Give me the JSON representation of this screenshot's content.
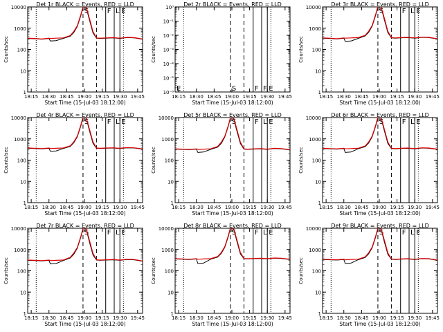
{
  "chart_data": {
    "type": "line",
    "grid": false,
    "legend": "none",
    "xlabel": "Start Time (15-Jul-03 18:12:00)",
    "ylabel": "Counts/sec",
    "x_ticks": [
      "18:15",
      "18:30",
      "18:45",
      "19:00",
      "19:15",
      "19:30",
      "19:45"
    ],
    "x_tick_minutes": [
      18.25,
      18.5,
      18.75,
      19.0,
      19.25,
      19.5,
      19.75
    ],
    "x_range_hours": [
      18.2,
      19.82
    ],
    "y_scale": "log",
    "colors": {
      "events": "#000000",
      "lld": "#e00000"
    },
    "marker_letters": [
      "S",
      "F",
      "F",
      "E"
    ],
    "markers": [
      {
        "x": 18.32,
        "style": "dotted"
      },
      {
        "x": 18.98,
        "style": "dashed"
      },
      {
        "x": 19.17,
        "style": "dashed"
      },
      {
        "x": 19.3,
        "style": "solid"
      },
      {
        "x": 19.42,
        "style": "solid"
      },
      {
        "x": 19.5,
        "style": "solid"
      },
      {
        "x": 19.55,
        "style": "dotted"
      }
    ],
    "time_hours": [
      18.2,
      18.3,
      18.4,
      18.5,
      18.52,
      18.6,
      18.7,
      18.8,
      18.85,
      18.9,
      18.95,
      18.98,
      19.0,
      19.03,
      19.07,
      19.12,
      19.17,
      19.22,
      19.3,
      19.4,
      19.5,
      19.6,
      19.7,
      19.82
    ],
    "panels": [
      {
        "title": "Det 1r BLACK = Events, RED = LLD",
        "y_range": [
          1,
          10000
        ],
        "y_ticks": [
          "1",
          "10",
          "100",
          "1000",
          "10000"
        ],
        "letters_top": [
          "S",
          "F",
          "L",
          "E"
        ],
        "letters_bottom": [],
        "events": [
          330,
          320,
          300,
          330,
          250,
          260,
          330,
          420,
          620,
          1200,
          4000,
          10000,
          12000,
          8000,
          2500,
          600,
          340,
          330,
          340,
          350,
          330,
          360,
          350,
          300
        ],
        "lld": [
          340,
          330,
          310,
          340,
          330,
          340,
          350,
          450,
          700,
          1300,
          4500,
          10000,
          12000,
          9000,
          3000,
          700,
          350,
          340,
          350,
          360,
          340,
          370,
          360,
          310
        ]
      },
      {
        "title": "Det 2r BLACK = Events, RED = LLD",
        "y_range": [
          1,
          1e-06
        ],
        "y_ticks": [
          "10⁻⁶",
          "10⁻⁵",
          "10⁻⁴",
          "10⁻³",
          "10⁻²",
          "10⁻¹",
          "10⁰"
        ],
        "letters_top": [],
        "letters_bottom": [
          "S",
          "F",
          "F",
          "E"
        ],
        "events": [],
        "lld": []
      },
      {
        "title": "Det 3r BLACK = Events, RED = LLD",
        "y_range": [
          1,
          10000
        ],
        "y_ticks": [
          "1",
          "10",
          "100",
          "1000",
          "10000"
        ],
        "letters_top": [
          "S",
          "F",
          "L",
          "E"
        ],
        "letters_bottom": [],
        "events": [
          340,
          330,
          310,
          340,
          240,
          250,
          330,
          430,
          640,
          1250,
          4200,
          10000,
          12500,
          8500,
          2600,
          620,
          350,
          340,
          350,
          360,
          340,
          370,
          360,
          310
        ],
        "lld": [
          350,
          340,
          320,
          350,
          340,
          350,
          360,
          460,
          720,
          1350,
          4700,
          10500,
          12500,
          9200,
          3100,
          720,
          360,
          350,
          360,
          370,
          350,
          380,
          370,
          320
        ]
      },
      {
        "title": "Det 4r BLACK = Events, RED = LLD",
        "y_range": [
          1,
          10000
        ],
        "y_ticks": [
          "1",
          "10",
          "100",
          "1000",
          "10000"
        ],
        "letters_top": [
          "S",
          "F",
          "L",
          "E"
        ],
        "letters_bottom": [],
        "events": [
          360,
          350,
          340,
          360,
          260,
          270,
          350,
          440,
          650,
          1250,
          4100,
          10000,
          12000,
          8200,
          2500,
          620,
          360,
          350,
          360,
          370,
          350,
          380,
          370,
          330
        ],
        "lld": [
          370,
          360,
          350,
          370,
          350,
          360,
          370,
          470,
          720,
          1350,
          4600,
          10500,
          12000,
          9000,
          3000,
          720,
          370,
          360,
          370,
          380,
          360,
          390,
          380,
          340
        ]
      },
      {
        "title": "Det 5r BLACK = Events, RED = LLD",
        "y_range": [
          1,
          10000
        ],
        "y_ticks": [
          "1",
          "10",
          "100",
          "1000",
          "10000"
        ],
        "letters_top": [
          "S",
          "F",
          "L",
          "E"
        ],
        "letters_bottom": [],
        "events": [
          330,
          320,
          310,
          330,
          230,
          240,
          320,
          410,
          610,
          1200,
          4000,
          10000,
          12000,
          8000,
          2400,
          600,
          330,
          320,
          330,
          340,
          320,
          350,
          340,
          300
        ],
        "lld": [
          340,
          330,
          320,
          340,
          320,
          330,
          340,
          440,
          690,
          1300,
          4400,
          10000,
          12000,
          8800,
          2900,
          700,
          340,
          330,
          340,
          350,
          330,
          360,
          350,
          310
        ]
      },
      {
        "title": "Det 6r BLACK = Events, RED = LLD",
        "y_range": [
          1,
          10000
        ],
        "y_ticks": [
          "1",
          "10",
          "100",
          "1000",
          "10000"
        ],
        "letters_top": [
          "S",
          "F",
          "L",
          "E"
        ],
        "letters_bottom": [],
        "events": [
          350,
          340,
          330,
          350,
          230,
          240,
          340,
          430,
          640,
          1250,
          4100,
          10000,
          12000,
          8200,
          2500,
          610,
          350,
          340,
          350,
          360,
          340,
          370,
          360,
          320
        ],
        "lld": [
          360,
          350,
          340,
          360,
          340,
          350,
          360,
          460,
          710,
          1350,
          4600,
          10500,
          12000,
          9000,
          3000,
          710,
          360,
          350,
          360,
          370,
          350,
          380,
          370,
          330
        ]
      },
      {
        "title": "Det 7r BLACK = Events, RED = LLD",
        "y_range": [
          1,
          10000
        ],
        "y_ticks": [
          "1",
          "10",
          "100",
          "1000",
          "10000"
        ],
        "letters_top": [
          "S",
          "F",
          "L",
          "E"
        ],
        "letters_bottom": [],
        "events": [
          310,
          300,
          290,
          310,
          210,
          220,
          300,
          400,
          600,
          1150,
          3900,
          9800,
          11500,
          7800,
          2300,
          560,
          320,
          310,
          320,
          330,
          310,
          340,
          330,
          280
        ],
        "lld": [
          320,
          310,
          300,
          320,
          300,
          310,
          320,
          430,
          680,
          1250,
          4300,
          10000,
          11500,
          8600,
          2800,
          660,
          330,
          320,
          330,
          340,
          320,
          350,
          340,
          290
        ]
      },
      {
        "title": "Det 8r BLACK = Events, RED = LLD",
        "y_range": [
          1,
          10000
        ],
        "y_ticks": [
          "1",
          "10",
          "100",
          "1000",
          "10000"
        ],
        "letters_top": [
          "S",
          "F",
          "L",
          "E"
        ],
        "letters_bottom": [],
        "events": [
          360,
          350,
          340,
          360,
          220,
          230,
          350,
          440,
          650,
          1250,
          4100,
          10000,
          12000,
          8200,
          2500,
          620,
          370,
          360,
          370,
          380,
          360,
          390,
          380,
          340
        ],
        "lld": [
          370,
          360,
          350,
          370,
          350,
          360,
          370,
          470,
          720,
          1350,
          4600,
          10500,
          12000,
          9000,
          3000,
          720,
          380,
          370,
          380,
          390,
          370,
          400,
          390,
          350
        ]
      },
      {
        "title": "Det 9r BLACK = Events, RED = LLD",
        "y_range": [
          1,
          10000
        ],
        "y_ticks": [
          "1",
          "10",
          "100",
          "1000",
          "10000"
        ],
        "letters_top": [
          "S",
          "F",
          "L",
          "E"
        ],
        "letters_bottom": [],
        "events": [
          340,
          330,
          320,
          340,
          220,
          230,
          330,
          420,
          630,
          1200,
          4000,
          10000,
          12000,
          8000,
          2400,
          600,
          350,
          340,
          350,
          360,
          340,
          370,
          360,
          310
        ],
        "lld": [
          350,
          340,
          330,
          350,
          330,
          340,
          350,
          450,
          700,
          1300,
          4500,
          10200,
          12000,
          8800,
          2900,
          700,
          360,
          350,
          360,
          370,
          350,
          380,
          370,
          320
        ]
      }
    ]
  }
}
